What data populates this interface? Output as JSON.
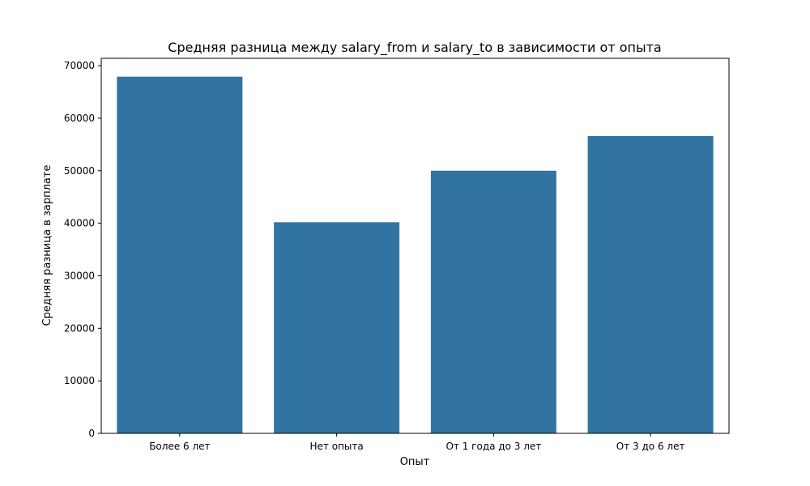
{
  "chart_data": {
    "type": "bar",
    "title": "Средняя разница между salary_from и salary_to в зависимости от опыта",
    "xlabel": "Опыт",
    "ylabel": "Средняя разница в зарплате",
    "categories": [
      "Более 6 лет",
      "Нет опыта",
      "От 1 года до 3 лет",
      "От 3 до 6 лет"
    ],
    "values": [
      67900,
      40200,
      50000,
      56600
    ],
    "ylim": [
      0,
      71400
    ],
    "yticks": [
      0,
      10000,
      20000,
      30000,
      40000,
      50000,
      60000,
      70000
    ],
    "bar_color": "#3274a1",
    "grid": false,
    "legend": "none"
  }
}
